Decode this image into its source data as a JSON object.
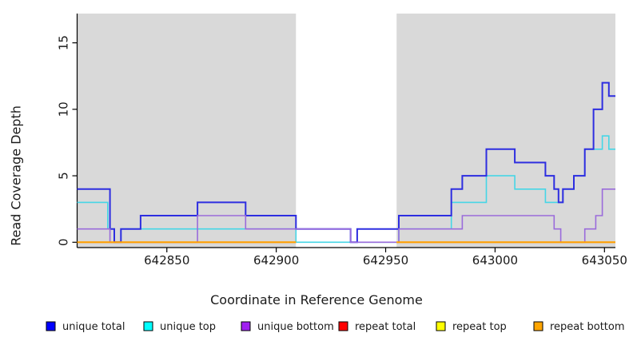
{
  "chart": {
    "xlabel": "Coordinate in Reference Genome",
    "ylabel": "Read Coverage Depth"
  },
  "chart_data": {
    "type": "line",
    "step": true,
    "title": "",
    "xlabel": "Coordinate in Reference Genome",
    "ylabel": "Read Coverage Depth",
    "xlim": [
      642809,
      643055
    ],
    "ylim": [
      -0.4,
      17.2
    ],
    "x_ticks": [
      642850,
      642900,
      642950,
      643000,
      643050
    ],
    "y_ticks": [
      0,
      5,
      10,
      15
    ],
    "grid": false,
    "legend_position": "bottom",
    "background_color": "#ffffff",
    "shaded_region_color": "#d9d9d9",
    "shaded_regions_note": "gray = repeat regions; white gap = unique region",
    "shaded_regions": [
      [
        642809,
        642909
      ],
      [
        642955,
        643055
      ]
    ],
    "axis_color": "#000000",
    "legend": [
      {
        "label": "unique total",
        "color": "#0000ff"
      },
      {
        "label": "unique top",
        "color": "#00ffff"
      },
      {
        "label": "unique bottom",
        "color": "#a020f0"
      },
      {
        "label": "repeat total",
        "color": "#ff0000"
      },
      {
        "label": "repeat top",
        "color": "#ffff00"
      },
      {
        "label": "repeat bottom",
        "color": "#ffa500"
      }
    ],
    "series": [
      {
        "name": "unique total",
        "color": "#2d2de0",
        "line_width": 2,
        "segments": [
          [
            [
              642809,
              4
            ],
            [
              642824,
              1
            ],
            [
              642826,
              0
            ],
            [
              642829,
              1
            ],
            [
              642838,
              2
            ],
            [
              642864,
              3
            ],
            [
              642886,
              2
            ],
            [
              642909,
              1
            ],
            [
              642934,
              0
            ],
            [
              642937,
              1
            ],
            [
              642956,
              2
            ],
            [
              642980,
              4
            ],
            [
              642985,
              5
            ],
            [
              642996,
              7
            ],
            [
              643009,
              6
            ],
            [
              643023,
              5
            ],
            [
              643027,
              4
            ],
            [
              643029,
              3
            ],
            [
              643031,
              4
            ],
            [
              643036,
              5
            ],
            [
              643041,
              7
            ],
            [
              643045,
              10
            ],
            [
              643049,
              12
            ],
            [
              643052,
              11
            ],
            [
              643055,
              11
            ]
          ]
        ]
      },
      {
        "name": "unique top",
        "color": "#45d6e6",
        "line_width": 1.6,
        "segments": [
          [
            [
              642809,
              3
            ],
            [
              642823,
              1
            ],
            [
              642826,
              0
            ],
            [
              642829,
              1
            ],
            [
              642909,
              0
            ],
            [
              642956,
              1
            ],
            [
              642980,
              3
            ],
            [
              642996,
              5
            ],
            [
              643009,
              4
            ],
            [
              643023,
              3
            ],
            [
              643031,
              4
            ],
            [
              643036,
              5
            ],
            [
              643041,
              7
            ],
            [
              643049,
              8
            ],
            [
              643052,
              7
            ],
            [
              643055,
              7
            ]
          ]
        ]
      },
      {
        "name": "unique bottom",
        "color": "#9a6bdb",
        "line_width": 1.6,
        "segments": [
          [
            [
              642809,
              1
            ],
            [
              642824,
              0
            ],
            [
              642864,
              2
            ],
            [
              642886,
              1
            ],
            [
              642934,
              0
            ],
            [
              642956,
              1
            ],
            [
              642985,
              2
            ],
            [
              643027,
              1
            ],
            [
              643030,
              0
            ],
            [
              643041,
              1
            ],
            [
              643046,
              2
            ],
            [
              643049,
              4
            ],
            [
              643055,
              4
            ]
          ]
        ]
      },
      {
        "name": "repeat total",
        "color": "#ff0000",
        "line_width": 1.6,
        "segments": [
          [
            [
              642809,
              0
            ],
            [
              642909,
              0
            ]
          ],
          [
            [
              642955,
              0
            ],
            [
              643055,
              0
            ]
          ]
        ]
      },
      {
        "name": "repeat top",
        "color": "#ffff00",
        "line_width": 1.6,
        "segments": [
          [
            [
              642809,
              0
            ],
            [
              642909,
              0
            ]
          ],
          [
            [
              642955,
              0
            ],
            [
              643055,
              0
            ]
          ]
        ]
      },
      {
        "name": "repeat bottom",
        "color": "#ff9f00",
        "line_width": 2,
        "segments": [
          [
            [
              642809,
              0
            ],
            [
              642909,
              0
            ]
          ],
          [
            [
              642955,
              0
            ],
            [
              643055,
              0
            ]
          ]
        ]
      }
    ],
    "draw_order": [
      "unique top",
      "unique total",
      "unique bottom",
      "repeat total",
      "repeat top",
      "repeat bottom"
    ]
  }
}
